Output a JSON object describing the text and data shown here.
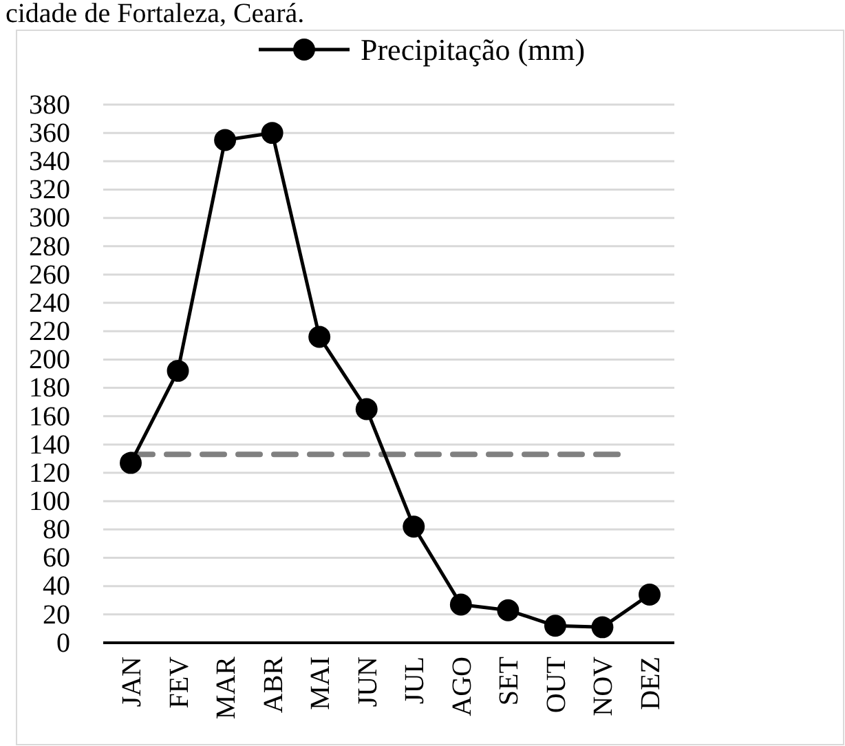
{
  "chart_data": {
    "type": "line",
    "title": "cidade de Fortaleza, Ceará.",
    "categories": [
      "JAN",
      "FEV",
      "MAR",
      "ABR",
      "MAI",
      "JUN",
      "JUL",
      "AGO",
      "SET",
      "OUT",
      "NOV",
      "DEZ"
    ],
    "series": [
      {
        "name": "Precipitação (mm)",
        "color": "#000000",
        "values": [
          127,
          192,
          355,
          360,
          216,
          165,
          82,
          27,
          23,
          12,
          11,
          34
        ]
      }
    ],
    "ylim": [
      0,
      380
    ],
    "yticks": [
      0,
      20,
      40,
      60,
      80,
      100,
      120,
      140,
      160,
      180,
      200,
      220,
      240,
      260,
      280,
      300,
      320,
      340,
      360,
      380
    ],
    "grid": "y",
    "legend": "top",
    "marker": "circle",
    "line_style": "solid",
    "ref_lines": [
      {
        "axis": "y",
        "value": 133,
        "color": "#808080",
        "line_style": "dashed"
      }
    ]
  }
}
